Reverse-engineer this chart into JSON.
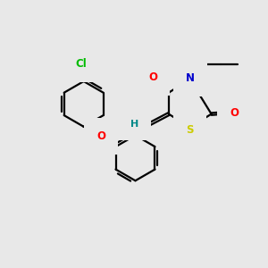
{
  "bg_color": "#e8e8e8",
  "bond_color": "#000000",
  "bond_width": 1.6,
  "atom_colors": {
    "O": "#ff0000",
    "N": "#0000cc",
    "S": "#cccc00",
    "Cl": "#00bb00",
    "H": "#008888",
    "C": "#000000"
  },
  "font_size": 8.5,
  "fig_size": [
    3.0,
    3.0
  ],
  "dpi": 100
}
